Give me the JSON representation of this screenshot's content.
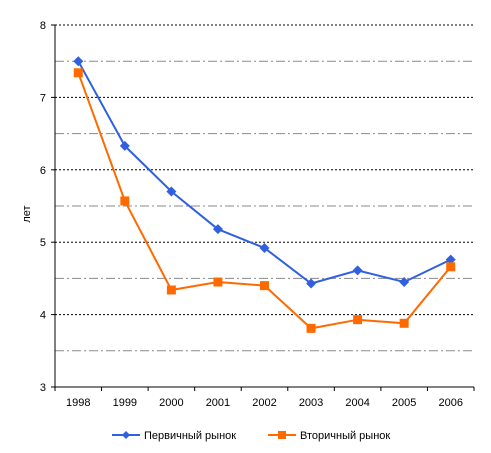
{
  "chart_data": {
    "type": "line",
    "title": "",
    "xlabel": "",
    "ylabel": "лет",
    "categories": [
      "1998",
      "1999",
      "2000",
      "2001",
      "2002",
      "2003",
      "2004",
      "2005",
      "2006"
    ],
    "ylim": [
      3,
      8
    ],
    "yticks": [
      "3",
      "4",
      "5",
      "6",
      "7",
      "8"
    ],
    "grid": true,
    "legend_position": "bottom",
    "series": [
      {
        "name": "Первичный рынок",
        "color": "#3060e0",
        "marker": "diamond",
        "values": [
          7.5,
          6.33,
          5.7,
          5.18,
          4.92,
          4.43,
          4.61,
          4.45,
          4.76
        ]
      },
      {
        "name": "Вторичный рынок",
        "color": "#ff6a00",
        "marker": "square",
        "values": [
          7.34,
          5.57,
          4.34,
          4.45,
          4.4,
          3.81,
          3.93,
          3.88,
          4.66
        ]
      }
    ]
  }
}
